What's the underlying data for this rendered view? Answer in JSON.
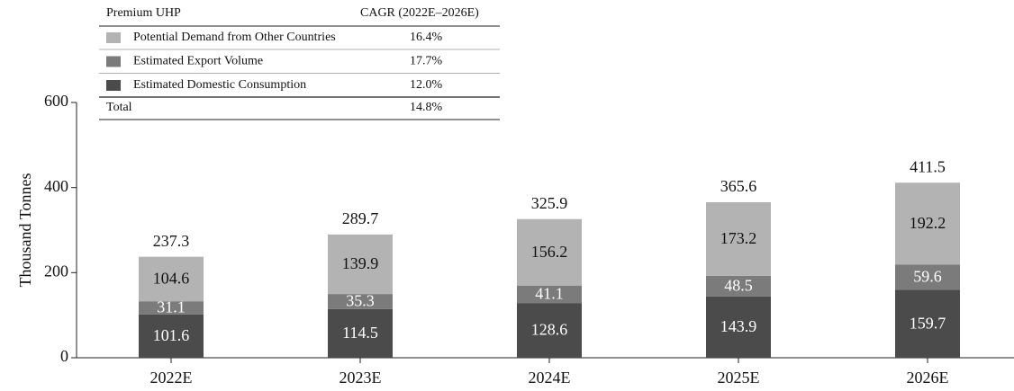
{
  "chart_data": {
    "type": "stacked_bar",
    "y_label": "Thousand Tonnes",
    "legend_title": "Premium UHP",
    "cagr_title": "CAGR (2022E–2026E)",
    "total_label": "Total",
    "total_cagr": "14.8%",
    "categories": [
      "2022E",
      "2023E",
      "2024E",
      "2025E",
      "2026E"
    ],
    "series": [
      {
        "name": "Estimated Domestic Consumption",
        "color": "#4b4b4b",
        "label_color": "#ffffff",
        "cagr": "12.0%",
        "values": [
          101.6,
          114.5,
          128.6,
          143.9,
          159.7
        ]
      },
      {
        "name": "Estimated Export Volume",
        "color": "#7b7b7b",
        "label_color": "#ffffff",
        "cagr": "17.7%",
        "values": [
          31.1,
          35.3,
          41.1,
          48.5,
          59.6
        ]
      },
      {
        "name": "Potential Demand from Other Countries",
        "color": "#b3b3b3",
        "label_color": "#111111",
        "cagr": "16.4%",
        "values": [
          104.6,
          139.9,
          156.2,
          173.2,
          192.2
        ]
      }
    ],
    "totals": [
      237.3,
      289.7,
      325.9,
      365.6,
      411.5
    ],
    "ylim": [
      0,
      600
    ],
    "yticks": [
      0,
      200,
      400,
      600
    ]
  }
}
